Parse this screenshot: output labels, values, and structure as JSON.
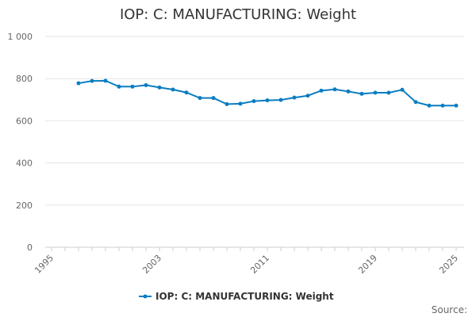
{
  "chart_data": {
    "type": "line",
    "title": "IOP: C: MANUFACTURING: Weight",
    "xlabel": "",
    "ylabel": "",
    "xlim": [
      1995,
      2025
    ],
    "ylim": [
      0,
      1000
    ],
    "x_ticks": [
      "1995",
      "2003",
      "2011",
      "2019",
      "2025"
    ],
    "y_ticks": [
      "0",
      "200",
      "400",
      "600",
      "800",
      "1 000"
    ],
    "grid": true,
    "legend_position": "bottom",
    "series": [
      {
        "name": "IOP: C: MANUFACTURING: Weight",
        "color": "#0a7dc2",
        "x": [
          1997,
          1998,
          1999,
          2000,
          2001,
          2002,
          2003,
          2004,
          2005,
          2006,
          2007,
          2008,
          2009,
          2010,
          2011,
          2012,
          2013,
          2014,
          2015,
          2016,
          2017,
          2018,
          2019,
          2020,
          2021,
          2022,
          2023,
          2024,
          2025
        ],
        "values": [
          778,
          789,
          790,
          762,
          762,
          769,
          758,
          748,
          734,
          708,
          708,
          679,
          681,
          693,
          697,
          699,
          710,
          719,
          743,
          749,
          739,
          728,
          733,
          733,
          747,
          689,
          672,
          672,
          672
        ]
      }
    ],
    "source_label": "Source:"
  }
}
